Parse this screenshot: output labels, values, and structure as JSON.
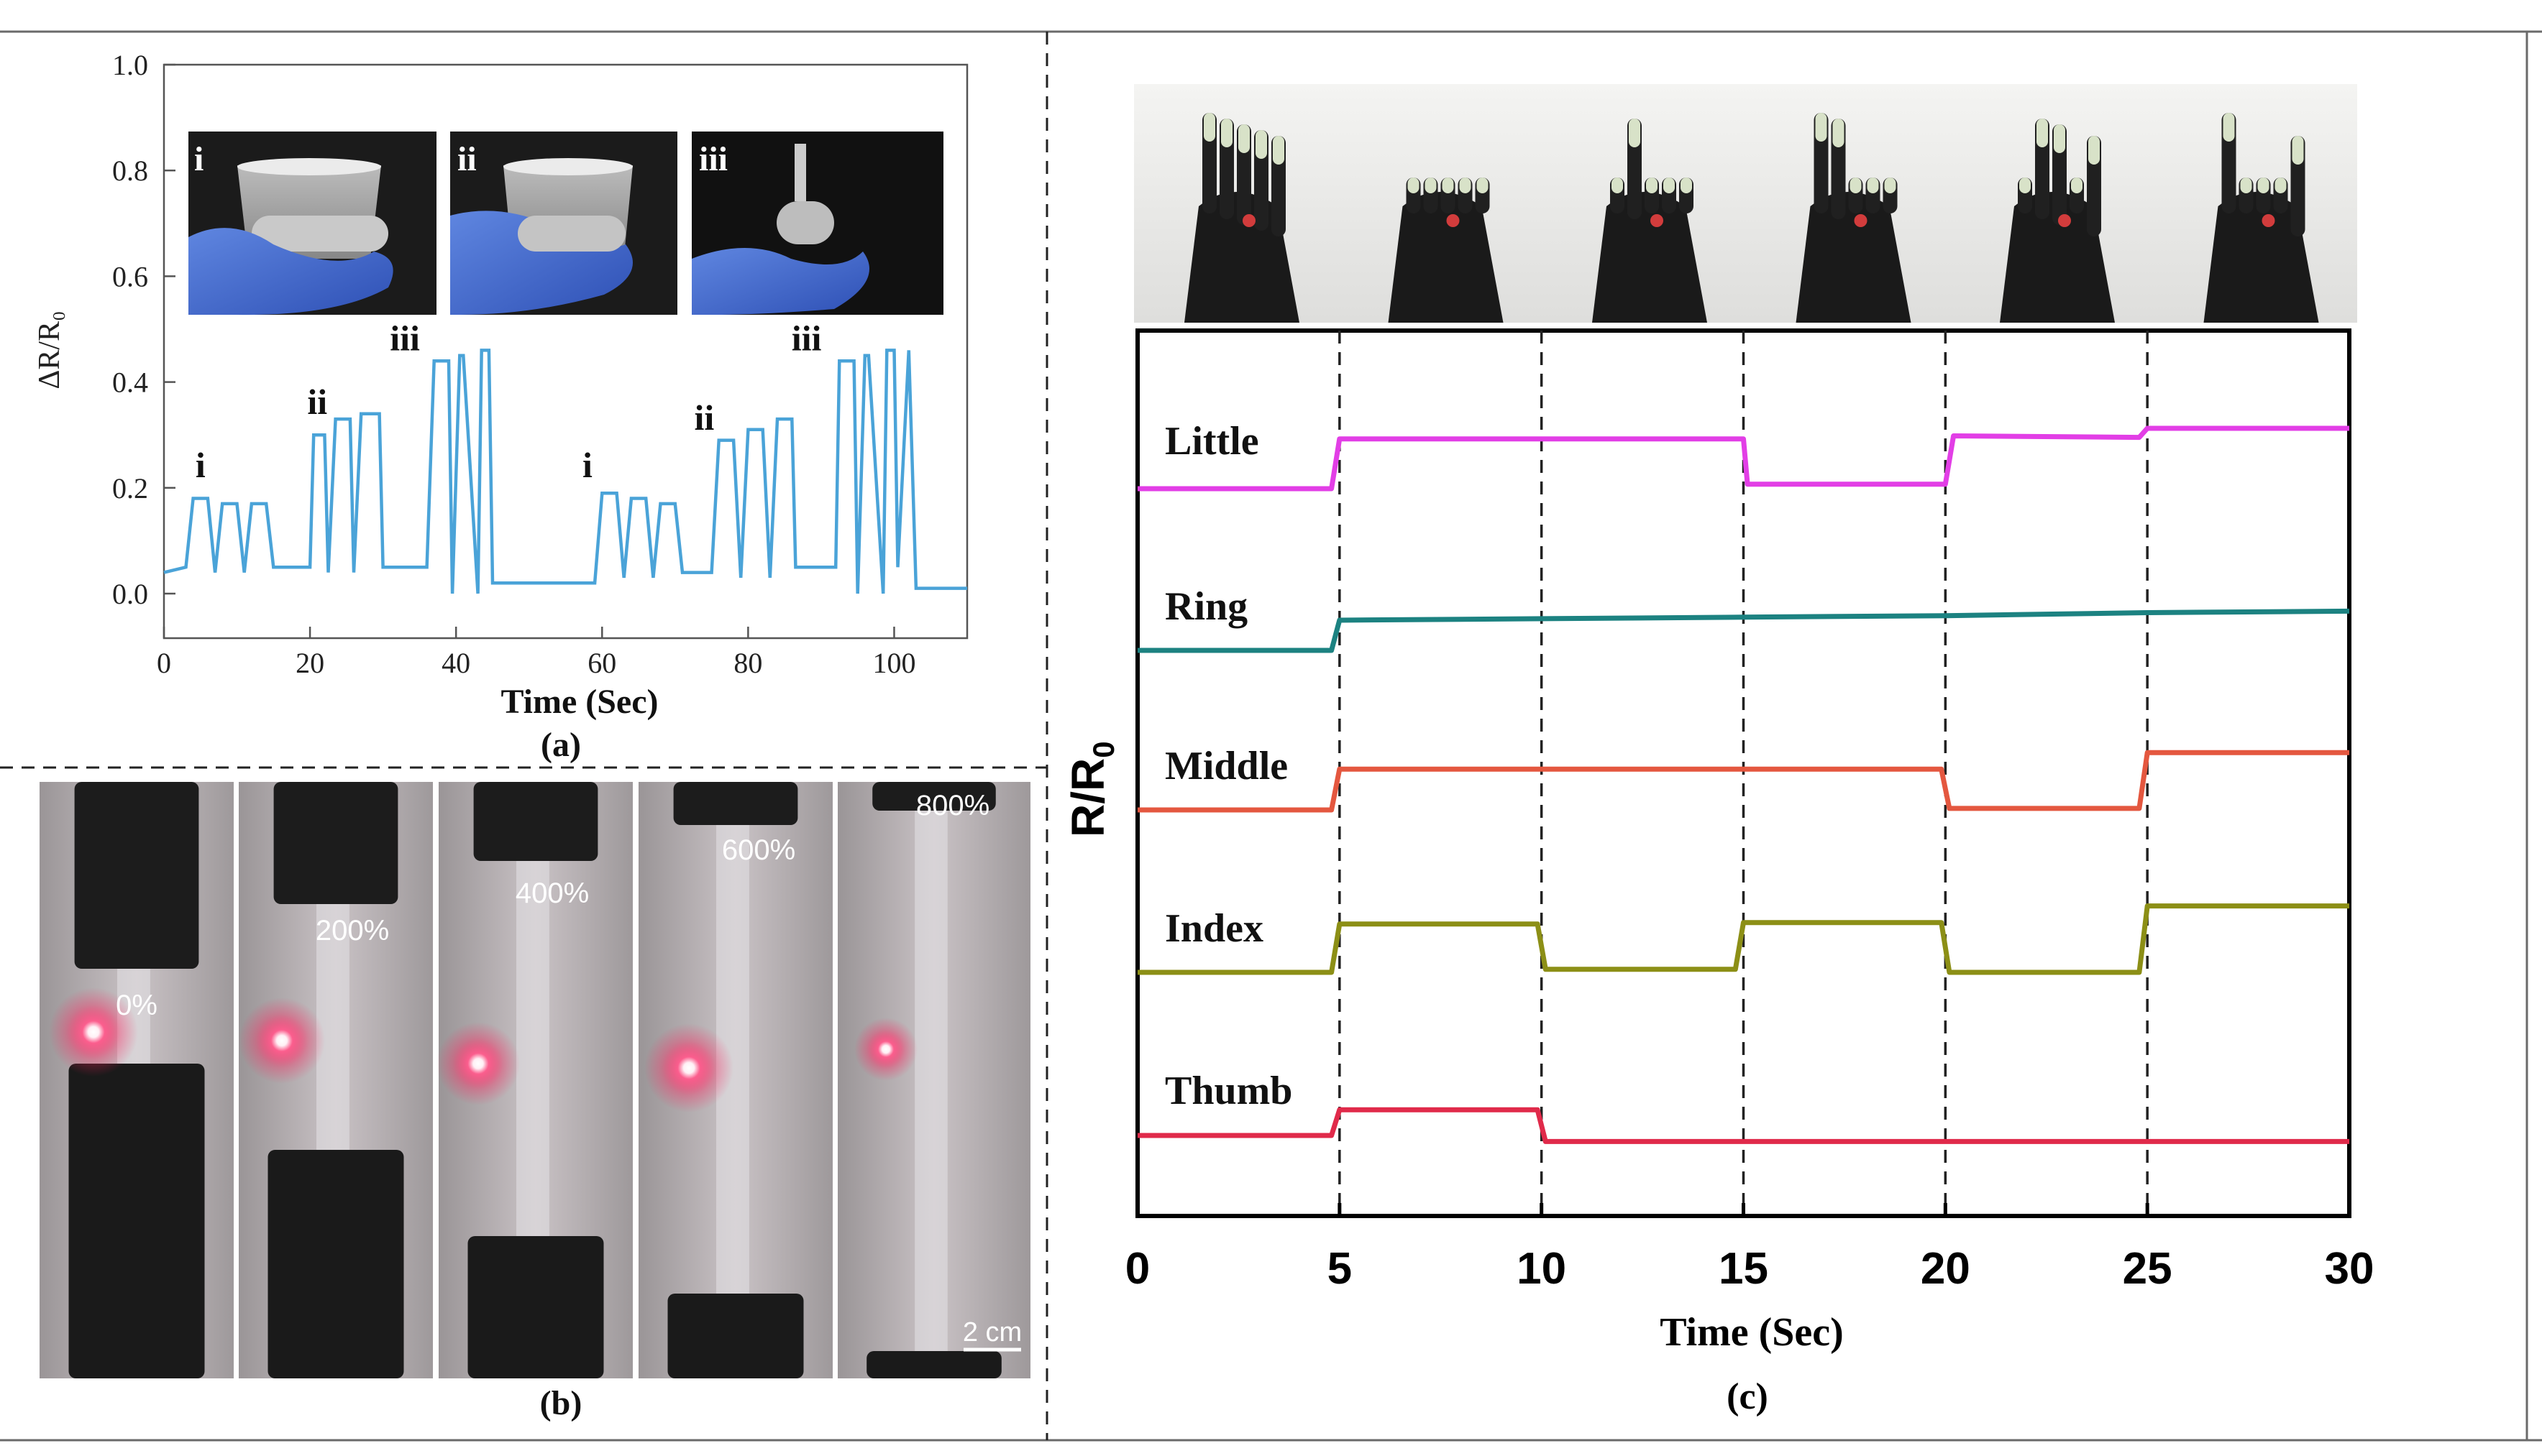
{
  "panels": {
    "a": {
      "caption": "(a)"
    },
    "b": {
      "caption": "(b)"
    },
    "c": {
      "caption": "(c)"
    }
  },
  "panel_a_photos": [
    "i",
    "ii",
    "iii"
  ],
  "panel_b_photos": {
    "strain_labels": [
      "0%",
      "200%",
      "400%",
      "600%",
      "800%"
    ],
    "scale_bar": "2 cm"
  },
  "colors": {
    "a_line": "#4aa3d8",
    "little": "#e23ee6",
    "ring": "#1c8281",
    "middle": "#e4573f",
    "index": "#8c8f16",
    "thumb": "#e02a4a"
  },
  "chart_data": [
    {
      "type": "line",
      "xlabel": "Time (Sec)",
      "ylabel": "ΔR/R₀",
      "xlim": [
        0,
        110
      ],
      "ylim": [
        0,
        1.0
      ],
      "xticks": [
        0,
        20,
        40,
        60,
        80,
        100
      ],
      "yticks": [
        0.0,
        0.2,
        0.4,
        0.6,
        0.8,
        1.0
      ],
      "annotations": [
        {
          "text": "i",
          "x": 5,
          "y": 0.22
        },
        {
          "text": "ii",
          "x": 21,
          "y": 0.34
        },
        {
          "text": "iii",
          "x": 33,
          "y": 0.46
        },
        {
          "text": "i",
          "x": 58,
          "y": 0.22
        },
        {
          "text": "ii",
          "x": 74,
          "y": 0.31
        },
        {
          "text": "iii",
          "x": 88,
          "y": 0.46
        }
      ],
      "series": [
        {
          "x": [
            0,
            3,
            4,
            6,
            7,
            8,
            10,
            11,
            12,
            14,
            15,
            20,
            20.5,
            22,
            22.5,
            23.5,
            25.5,
            26,
            27,
            29.5,
            30,
            36,
            37,
            39,
            39.5,
            40.5,
            41,
            43,
            43.5,
            44.5,
            45,
            46,
            58,
            59,
            60,
            62,
            63,
            64,
            66,
            67,
            68,
            70,
            71,
            75,
            76,
            78,
            79,
            80,
            82,
            83,
            84,
            86,
            86.5,
            92,
            92.5,
            94.5,
            95,
            96,
            96.5,
            98.5,
            99,
            100,
            100.5,
            102,
            103,
            110
          ],
          "y": [
            0.04,
            0.05,
            0.18,
            0.18,
            0.04,
            0.17,
            0.17,
            0.04,
            0.17,
            0.17,
            0.05,
            0.05,
            0.3,
            0.3,
            0.04,
            0.33,
            0.33,
            0.04,
            0.34,
            0.34,
            0.05,
            0.05,
            0.44,
            0.44,
            0.0,
            0.45,
            0.45,
            0.0,
            0.46,
            0.46,
            0.02,
            0.02,
            0.02,
            0.02,
            0.19,
            0.19,
            0.03,
            0.18,
            0.18,
            0.03,
            0.17,
            0.17,
            0.04,
            0.04,
            0.29,
            0.29,
            0.03,
            0.31,
            0.31,
            0.03,
            0.33,
            0.33,
            0.05,
            0.05,
            0.44,
            0.44,
            0.0,
            0.45,
            0.45,
            0.0,
            0.46,
            0.46,
            0.05,
            0.46,
            0.01,
            0.01
          ]
        }
      ]
    },
    {
      "type": "line",
      "xlabel": "Time (Sec)",
      "ylabel": "R/R0",
      "xlim": [
        0,
        30
      ],
      "xticks": [
        0,
        5,
        10,
        15,
        20,
        25,
        30
      ],
      "vlines": [
        5,
        10,
        15,
        20,
        25
      ],
      "series": [
        {
          "name": "Little",
          "x": [
            0,
            4.8,
            5,
            15,
            15.1,
            20,
            20.2,
            24.8,
            25,
            30
          ],
          "y": [
            0.0,
            0.0,
            0.33,
            0.33,
            0.03,
            0.03,
            0.35,
            0.34,
            0.4,
            0.4
          ]
        },
        {
          "name": "Ring",
          "x": [
            0,
            4.8,
            5,
            15,
            20,
            25,
            30
          ],
          "y": [
            0.0,
            0.0,
            0.2,
            0.22,
            0.23,
            0.25,
            0.26
          ]
        },
        {
          "name": "Middle",
          "x": [
            0,
            4.8,
            5,
            19.9,
            20.1,
            24.8,
            25,
            30
          ],
          "y": [
            0.0,
            0.0,
            0.27,
            0.27,
            0.01,
            0.01,
            0.38,
            0.38
          ]
        },
        {
          "name": "Index",
          "x": [
            0,
            4.8,
            5,
            9.9,
            10.1,
            14.8,
            15,
            19.9,
            20.1,
            24.8,
            25,
            30
          ],
          "y": [
            0.0,
            0.0,
            0.32,
            0.32,
            0.02,
            0.02,
            0.33,
            0.33,
            0.0,
            0.0,
            0.44,
            0.44
          ]
        },
        {
          "name": "Thumb",
          "x": [
            0,
            4.8,
            5,
            9.9,
            10.1,
            30
          ],
          "y": [
            0.0,
            0.0,
            0.17,
            0.17,
            -0.04,
            -0.04
          ]
        }
      ]
    }
  ]
}
